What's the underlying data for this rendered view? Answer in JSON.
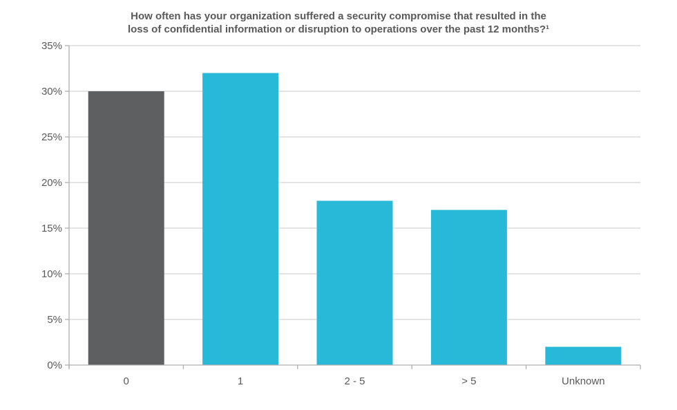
{
  "title": {
    "line1": "How often has your organization suffered a security compromise that resulted in the",
    "line2": "loss of confidential information or disruption to operations over the past 12 months?¹"
  },
  "chart_data": {
    "type": "bar",
    "title": "How often has your organization suffered a security compromise that resulted in the loss of confidential information or disruption to operations over the past 12 months?¹",
    "categories": [
      "0",
      "1",
      "2 - 5",
      "> 5",
      "Unknown"
    ],
    "values": [
      30,
      32,
      18,
      17,
      2
    ],
    "xlabel": "",
    "ylabel": "",
    "ylim": [
      0,
      35
    ],
    "ytick_step": 5,
    "ytick_labels": [
      "0%",
      "5%",
      "10%",
      "15%",
      "20%",
      "25%",
      "30%",
      "35%"
    ],
    "grid": true,
    "legend": false,
    "bar_colors": [
      "#5e5f61",
      "#29b9d8",
      "#29b9d8",
      "#29b9d8",
      "#29b9d8"
    ]
  },
  "colors": {
    "bar_highlight": "#5e5f61",
    "bar_default": "#29b9d8",
    "gridline": "#d4d4d4",
    "axis": "#aeaeae",
    "text": "#595959",
    "background": "#ffffff"
  }
}
